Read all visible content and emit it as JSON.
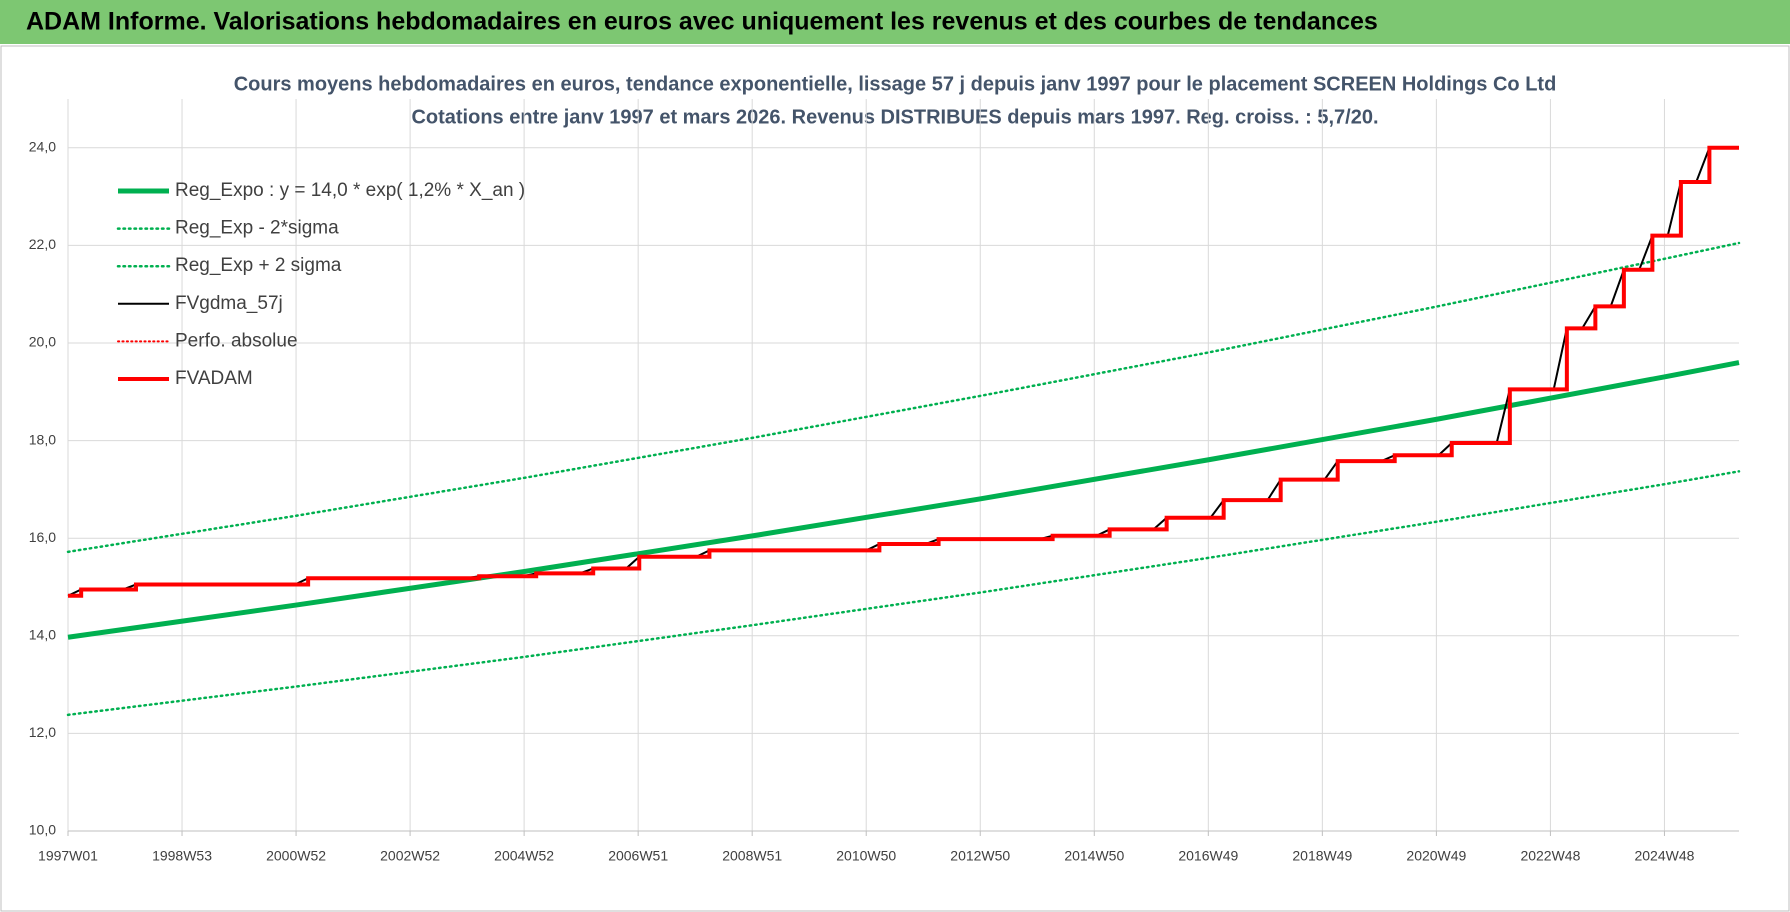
{
  "header": {
    "title": "ADAM Informe. Valorisations hebdomadaires en euros avec uniquement les revenus et des courbes de tendances"
  },
  "chart_data": {
    "type": "line",
    "title": "Cours moyens hebdomadaires en euros, tendance exponentielle, lissage 57 j depuis janv 1997 pour le placement SCREEN Holdings Co Ltd",
    "subtitle": "Cotations entre janv 1997 et mars 2026. Revenus DISTRIBUES depuis mars 1997. Reg. croiss. : 5,7/20.",
    "xlim": [
      0,
      1524
    ],
    "xticks": [
      {
        "value": 0,
        "label": "1997W01"
      },
      {
        "value": 104,
        "label": "1998W53"
      },
      {
        "value": 208,
        "label": "2000W52"
      },
      {
        "value": 312,
        "label": "2002W52"
      },
      {
        "value": 416,
        "label": "2004W52"
      },
      {
        "value": 520,
        "label": "2006W51"
      },
      {
        "value": 624,
        "label": "2008W51"
      },
      {
        "value": 728,
        "label": "2010W50"
      },
      {
        "value": 832,
        "label": "2012W50"
      },
      {
        "value": 936,
        "label": "2014W50"
      },
      {
        "value": 1040,
        "label": "2016W49"
      },
      {
        "value": 1144,
        "label": "2018W49"
      },
      {
        "value": 1248,
        "label": "2020W49"
      },
      {
        "value": 1352,
        "label": "2022W48"
      },
      {
        "value": 1456,
        "label": "2024W48"
      }
    ],
    "ylim": [
      10,
      25
    ],
    "yticks": [
      {
        "value": 10,
        "label": "10,0"
      },
      {
        "value": 12,
        "label": "12,0"
      },
      {
        "value": 14,
        "label": "14,0"
      },
      {
        "value": 16,
        "label": "16,0"
      },
      {
        "value": 18,
        "label": "18,0"
      },
      {
        "value": 20,
        "label": "20,0"
      },
      {
        "value": 22,
        "label": "22,0"
      },
      {
        "value": 24,
        "label": "24,0"
      }
    ],
    "grid": true,
    "legend": "upper left",
    "series": [
      {
        "name": "Reg_Expo : y = 14,0 * exp( 1,2% *  X_an )",
        "color": "#00b050",
        "style": "solid",
        "width": 5,
        "x": [
          0,
          208,
          417,
          625,
          833,
          1041,
          1249,
          1457,
          1524
        ],
        "values": [
          13.97,
          14.63,
          15.32,
          16.05,
          16.81,
          17.61,
          18.44,
          19.31,
          19.6
        ]
      },
      {
        "name": "Reg_Exp - 2*sigma",
        "color": "#00b050",
        "style": "dot",
        "width": 2.5,
        "x": [
          0,
          208,
          417,
          625,
          833,
          1041,
          1249,
          1457,
          1524
        ],
        "values": [
          12.38,
          12.96,
          13.57,
          14.22,
          14.89,
          15.6,
          16.34,
          17.11,
          17.37
        ]
      },
      {
        "name": "Reg_Exp + 2 sigma",
        "color": "#00b050",
        "style": "dot",
        "width": 2.5,
        "x": [
          0,
          208,
          417,
          625,
          833,
          1041,
          1249,
          1457,
          1524
        ],
        "values": [
          15.72,
          16.46,
          17.24,
          18.06,
          18.92,
          19.81,
          20.75,
          21.73,
          22.05
        ]
      },
      {
        "name": "FVgdma_57j",
        "color": "#000000",
        "style": "solid",
        "width": 2,
        "x": [
          0,
          12,
          50,
          62,
          207,
          219,
          363,
          375,
          415,
          427,
          467,
          479,
          509,
          521,
          573,
          585,
          728,
          740,
          782,
          794,
          886,
          898,
          938,
          950,
          990,
          1002,
          1042,
          1054,
          1094,
          1106,
          1146,
          1158,
          1198,
          1210,
          1250,
          1262,
          1303,
          1315,
          1355,
          1367,
          1381,
          1393,
          1407,
          1419,
          1433,
          1445,
          1459,
          1471,
          1485,
          1497,
          1524
        ],
        "values": [
          14.82,
          14.95,
          14.95,
          15.05,
          15.05,
          15.18,
          15.18,
          15.22,
          15.22,
          15.28,
          15.28,
          15.38,
          15.38,
          15.62,
          15.62,
          15.75,
          15.75,
          15.88,
          15.88,
          15.98,
          15.98,
          16.05,
          16.05,
          16.18,
          16.18,
          16.42,
          16.42,
          16.78,
          16.78,
          17.2,
          17.2,
          17.58,
          17.58,
          17.7,
          17.7,
          17.95,
          17.95,
          19.05,
          19.05,
          20.3,
          20.3,
          20.75,
          20.75,
          21.5,
          21.5,
          22.2,
          22.2,
          23.3,
          23.3,
          24.0,
          24.0
        ]
      },
      {
        "name": "Perfo. absolue",
        "color": "#ff0000",
        "style": "dot",
        "width": 2,
        "x": [],
        "values": []
      },
      {
        "name": "FVADAM",
        "color": "#ff0000",
        "style": "solid",
        "width": 4,
        "step": "after",
        "x": [
          0,
          12,
          62,
          219,
          375,
          427,
          479,
          521,
          585,
          740,
          794,
          898,
          950,
          1002,
          1054,
          1106,
          1158,
          1210,
          1262,
          1315,
          1367,
          1393,
          1419,
          1445,
          1471,
          1497,
          1524
        ],
        "values": [
          14.82,
          14.95,
          15.05,
          15.18,
          15.22,
          15.28,
          15.38,
          15.62,
          15.75,
          15.88,
          15.98,
          16.05,
          16.18,
          16.42,
          16.78,
          17.2,
          17.58,
          17.7,
          17.95,
          19.05,
          20.3,
          20.75,
          21.5,
          22.2,
          23.3,
          24.0,
          24.0
        ]
      }
    ]
  }
}
